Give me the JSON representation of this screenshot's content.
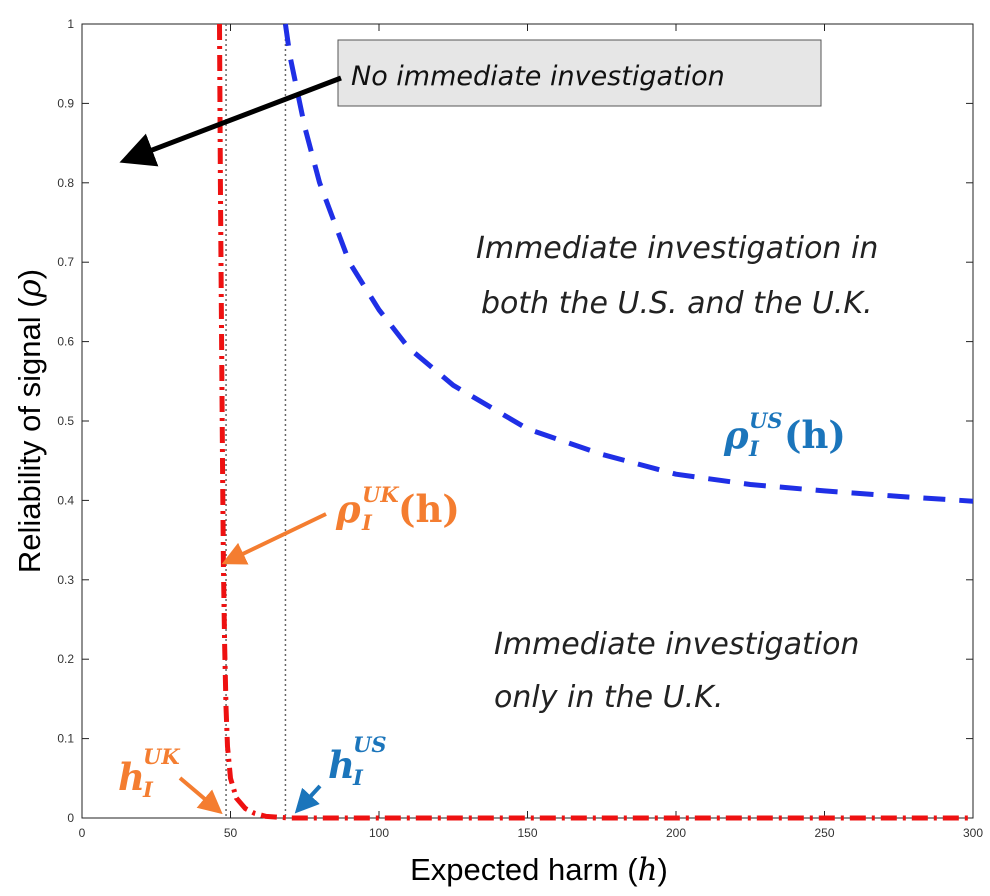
{
  "colors": {
    "us_curve": "#1f2fe6",
    "uk_curve": "#ee1111",
    "us_label": "#1b75bb",
    "uk_label": "#f47d30",
    "threshold_line": "#666666",
    "annotation_box_fill": "#e6e6e6",
    "arrow_black": "#000000"
  },
  "chart_data": {
    "type": "line",
    "xlabel": "Expected harm (h)",
    "xlabel_text": "Expected harm (",
    "xlabel_symbol": "h",
    "xlabel_close": ")",
    "ylabel": "Reliability of signal (ρ)",
    "ylabel_text": "Reliability of signal (",
    "ylabel_symbol": "ρ",
    "ylabel_close": ")",
    "xlim": [
      0,
      300
    ],
    "ylim": [
      0,
      1
    ],
    "xticks": [
      0,
      50,
      100,
      150,
      200,
      250,
      300
    ],
    "yticks": [
      0,
      0.1,
      0.2,
      0.3,
      0.4,
      0.5,
      0.6,
      0.7,
      0.8,
      0.9,
      1
    ],
    "grid": false,
    "series": [
      {
        "name": "ρ_I^US(h)",
        "style": "dashed",
        "color": "#1f2fe6",
        "x": [
          68.5,
          70,
          75,
          80,
          90,
          100,
          110,
          125,
          150,
          175,
          200,
          225,
          250,
          275,
          300
        ],
        "y": [
          1.0,
          0.96,
          0.87,
          0.8,
          0.7,
          0.64,
          0.592,
          0.545,
          0.49,
          0.458,
          0.433,
          0.42,
          0.412,
          0.405,
          0.399
        ]
      },
      {
        "name": "ρ_I^UK(h)",
        "style": "dashdot",
        "color": "#ee1111",
        "x": [
          46.3,
          46.6,
          47.0,
          47.3,
          47.6,
          48.0,
          48.5,
          49.0,
          50,
          52,
          55,
          58,
          62,
          70,
          100,
          150,
          200,
          250,
          300
        ],
        "y": [
          1.0,
          0.8,
          0.6,
          0.45,
          0.32,
          0.22,
          0.14,
          0.09,
          0.05,
          0.025,
          0.012,
          0.006,
          0.002,
          0.0,
          0.0,
          0.0,
          0.0,
          0.0,
          0.0
        ]
      }
    ],
    "thresholds": [
      {
        "name": "h_I^UK",
        "x": 48.5
      },
      {
        "name": "h_I^US",
        "x": 68.5
      }
    ],
    "annotations": {
      "no_investigation": "No immediate investigation",
      "both_line1": "Immediate investigation in",
      "both_line2": "both the U.S. and the U.K.",
      "uk_only_line1": "Immediate investigation",
      "uk_only_line2": "only in the U.K.",
      "us_curve_label": {
        "base": "ρ",
        "sup": "US",
        "sub": "I",
        "arg": "(h)"
      },
      "uk_curve_label": {
        "base": "ρ",
        "sup": "UK",
        "sub": "I",
        "arg": "(h)"
      },
      "uk_threshold_label": {
        "base": "h",
        "sup": "UK",
        "sub": "I"
      },
      "us_threshold_label": {
        "base": "h",
        "sup": "US",
        "sub": "I"
      }
    }
  }
}
